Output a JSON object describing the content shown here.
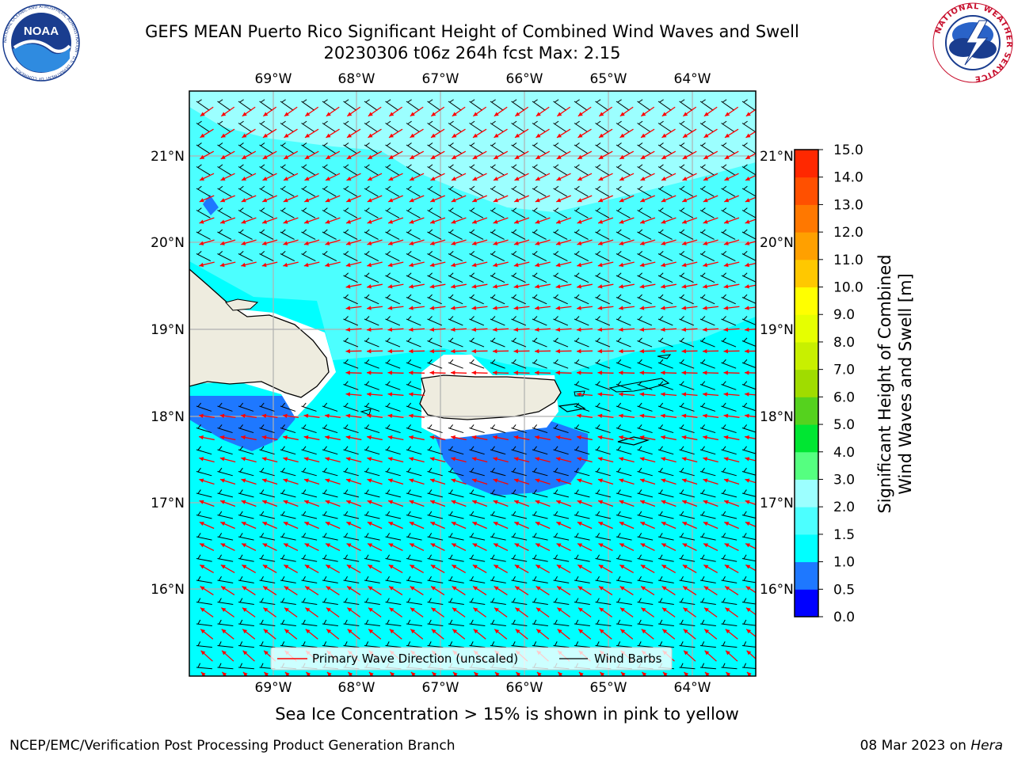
{
  "header": {
    "title_line1": "GEFS MEAN Puerto Rico Significant Height of Combined Wind Waves and Swell",
    "title_line2": "20230306 t06z 264h fcst   Max: 2.15"
  },
  "logos": {
    "noaa_text": "NOAA",
    "noaa_ring": "NATIONAL OCEANIC AND ATMOSPHERIC ADMINISTRATION · U.S. DEPARTMENT OF COMMERCE",
    "nws_ring": "NATIONAL WEATHER SERVICE"
  },
  "map": {
    "lon_labels": [
      "69°W",
      "68°W",
      "67°W",
      "66°W",
      "65°W",
      "64°W"
    ],
    "lat_labels": [
      "21°N",
      "20°N",
      "19°N",
      "18°N",
      "17°N",
      "16°N"
    ],
    "legend": {
      "wave_dir": "Primary Wave Direction (unscaled)",
      "wind_barbs": "Wind Barbs"
    },
    "colors": {
      "land": "#eeecdf",
      "shallow": "#ffffff",
      "wave_arrow": "#ff0000",
      "barb": "#000000"
    }
  },
  "colorbar": {
    "label_line1": "Significant Height of Combined",
    "label_line2": "Wind Waves and Swell [m]",
    "ticks": [
      "0.0",
      "0.5",
      "1.0",
      "1.5",
      "2.0",
      "3.0",
      "4.0",
      "5.0",
      "6.0",
      "7.0",
      "8.0",
      "9.0",
      "10.0",
      "11.0",
      "12.0",
      "13.0",
      "14.0",
      "15.0"
    ],
    "colors": [
      "#0000ff",
      "#1e78ff",
      "#00ffff",
      "#4cffff",
      "#9cffff",
      "#55ff80",
      "#00e632",
      "#55d21e",
      "#a0dc00",
      "#c8f000",
      "#e6ff00",
      "#ffff00",
      "#ffc800",
      "#ffa000",
      "#ff7800",
      "#ff5000",
      "#ff2800"
    ]
  },
  "footer": {
    "caption": "Sea Ice Concentration > 15% is shown in pink to yellow",
    "left": "NCEP/EMC/Verification Post Processing Product Generation Branch",
    "right_date": "08 Mar 2023 on ",
    "right_host": "Hera"
  }
}
